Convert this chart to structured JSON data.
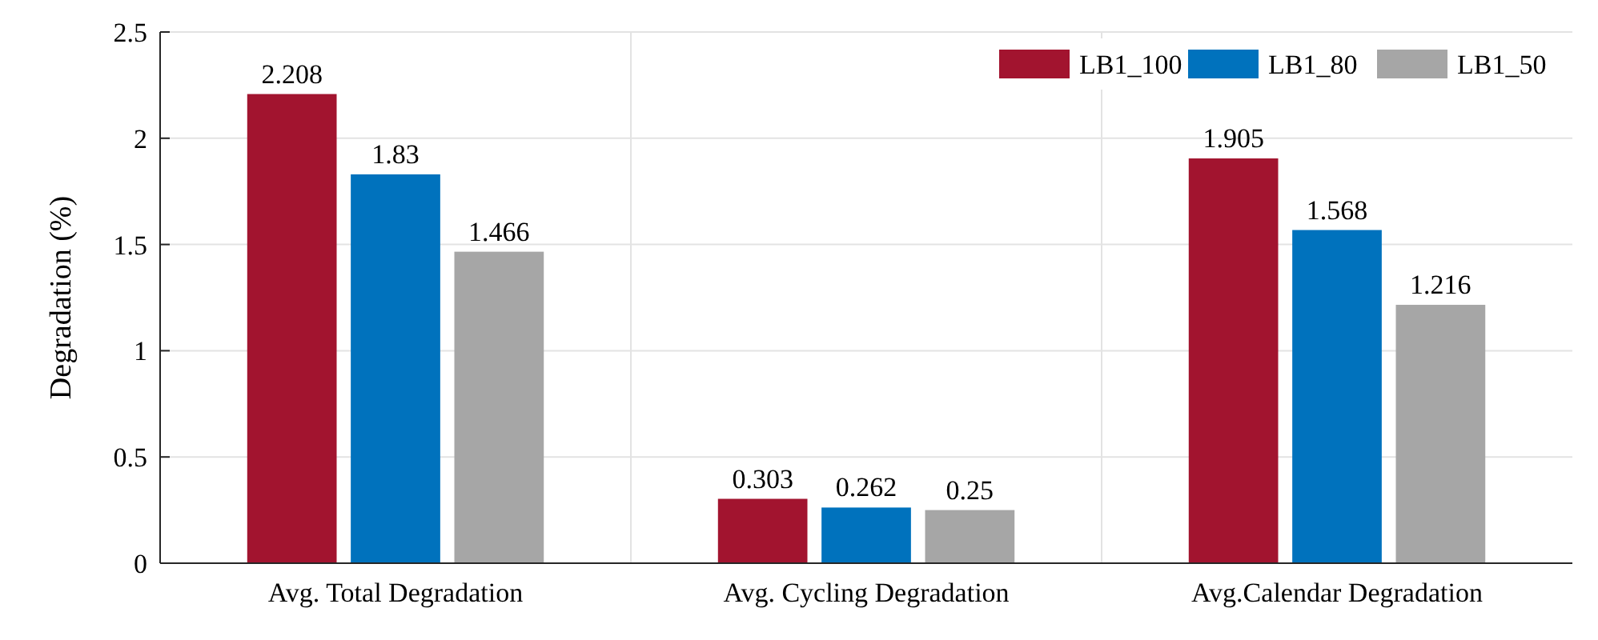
{
  "chart_data": {
    "type": "bar",
    "ylabel": "Degradation (%)",
    "categories": [
      "Avg. Total Degradation",
      "Avg. Cycling Degradation",
      "Avg.Calendar Degradation"
    ],
    "series": [
      {
        "name": "LB1_100",
        "color": "#a2142f",
        "values": [
          2.208,
          0.303,
          1.905
        ]
      },
      {
        "name": "LB1_80",
        "color": "#0072bd",
        "values": [
          1.83,
          0.262,
          1.568
        ]
      },
      {
        "name": "LB1_50",
        "color": "#a6a6a6",
        "values": [
          1.466,
          0.25,
          1.216
        ]
      }
    ],
    "ylim": [
      0,
      2.5
    ],
    "yticks": [
      0,
      0.5,
      1,
      1.5,
      2,
      2.5
    ],
    "grid": true,
    "legend": "top right",
    "data_labels": true
  }
}
